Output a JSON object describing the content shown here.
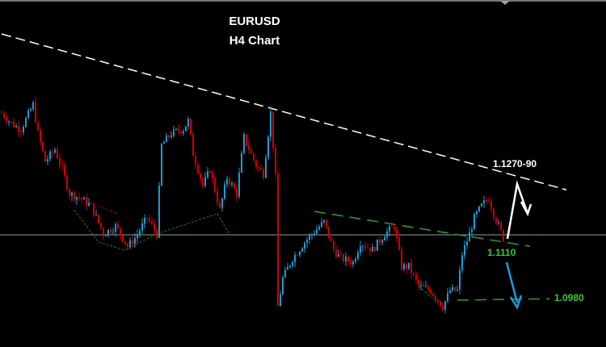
{
  "chart_data": {
    "type": "candlestick",
    "title": "EURUSD",
    "subtitle": "H4 Chart",
    "ylim": [
      1.0875,
      1.163
    ],
    "x_unit": "bar index",
    "grid": false,
    "colors": {
      "background": "#000000",
      "up": "#1e9bd7",
      "down": "#d00000",
      "trend": "#ffffff",
      "support": "#2f9e2f",
      "level": "#9a9a9a"
    },
    "close_path": [
      [
        0,
        1.1384
      ],
      [
        3,
        1.1367
      ],
      [
        5,
        1.1358
      ],
      [
        8,
        1.1349
      ],
      [
        13,
        1.1402
      ],
      [
        15,
        1.134
      ],
      [
        18,
        1.1279
      ],
      [
        22,
        1.1305
      ],
      [
        25,
        1.1261
      ],
      [
        28,
        1.1209
      ],
      [
        32,
        1.12
      ],
      [
        37,
        1.1182
      ],
      [
        42,
        1.1121
      ],
      [
        47,
        1.1138
      ],
      [
        52,
        1.1094
      ],
      [
        55,
        1.1112
      ],
      [
        60,
        1.1156
      ],
      [
        64,
        1.1121
      ],
      [
        66,
        1.1314
      ],
      [
        70,
        1.134
      ],
      [
        75,
        1.1349
      ],
      [
        77,
        1.1367
      ],
      [
        79,
        1.1296
      ],
      [
        83,
        1.1226
      ],
      [
        86,
        1.1261
      ],
      [
        90,
        1.1173
      ],
      [
        93,
        1.1244
      ],
      [
        97,
        1.1209
      ],
      [
        100,
        1.1331
      ],
      [
        105,
        1.127
      ],
      [
        108,
        1.1252
      ],
      [
        111,
        1.1384
      ],
      [
        113,
        1.1244
      ],
      [
        114,
        1.0963
      ],
      [
        116,
        1.1024
      ],
      [
        120,
        1.1068
      ],
      [
        125,
        1.1103
      ],
      [
        128,
        1.1121
      ],
      [
        133,
        1.1147
      ],
      [
        137,
        1.1086
      ],
      [
        140,
        1.1068
      ],
      [
        145,
        1.1059
      ],
      [
        148,
        1.1103
      ],
      [
        153,
        1.1086
      ],
      [
        158,
        1.1121
      ],
      [
        162,
        1.1138
      ],
      [
        165,
        1.105
      ],
      [
        168,
        1.105
      ],
      [
        172,
        1.1007
      ],
      [
        177,
        1.0998
      ],
      [
        182,
        1.0963
      ],
      [
        185,
        1.0998
      ],
      [
        188,
        1.0998
      ],
      [
        190,
        1.1077
      ],
      [
        193,
        1.1121
      ],
      [
        195,
        1.1156
      ],
      [
        198,
        1.1182
      ],
      [
        201,
        1.12
      ],
      [
        203,
        1.1165
      ],
      [
        207,
        1.1112
      ]
    ],
    "lines": [
      {
        "kind": "trendline-dashed",
        "from": [
          0,
          1.1556
        ],
        "to": [
          233,
          1.1217
        ],
        "color": "#ffffff"
      },
      {
        "kind": "horizontal",
        "price": 1.1119,
        "color": "#9a9a9a"
      },
      {
        "kind": "resistance-dashed",
        "from": [
          129,
          1.117
        ],
        "to": [
          218,
          1.1094
        ],
        "color": "#2f9e2f"
      },
      {
        "kind": "target-dashed",
        "from": [
          188,
          1.0977
        ],
        "to": [
          226,
          1.098
        ],
        "color": "#2f9e2f"
      }
    ],
    "annotations": [
      {
        "text": "1.1270-90",
        "color": "#ffffff"
      },
      {
        "text": "1.1110",
        "color": "#3cc83c"
      },
      {
        "text": "1.0980",
        "color": "#3cc83c"
      }
    ],
    "arrows": [
      {
        "direction": "up-then-down",
        "color": "#ffffff",
        "target": "1.1270-90"
      },
      {
        "direction": "down",
        "color": "#1e9bd7",
        "target": "1.0980"
      }
    ]
  }
}
